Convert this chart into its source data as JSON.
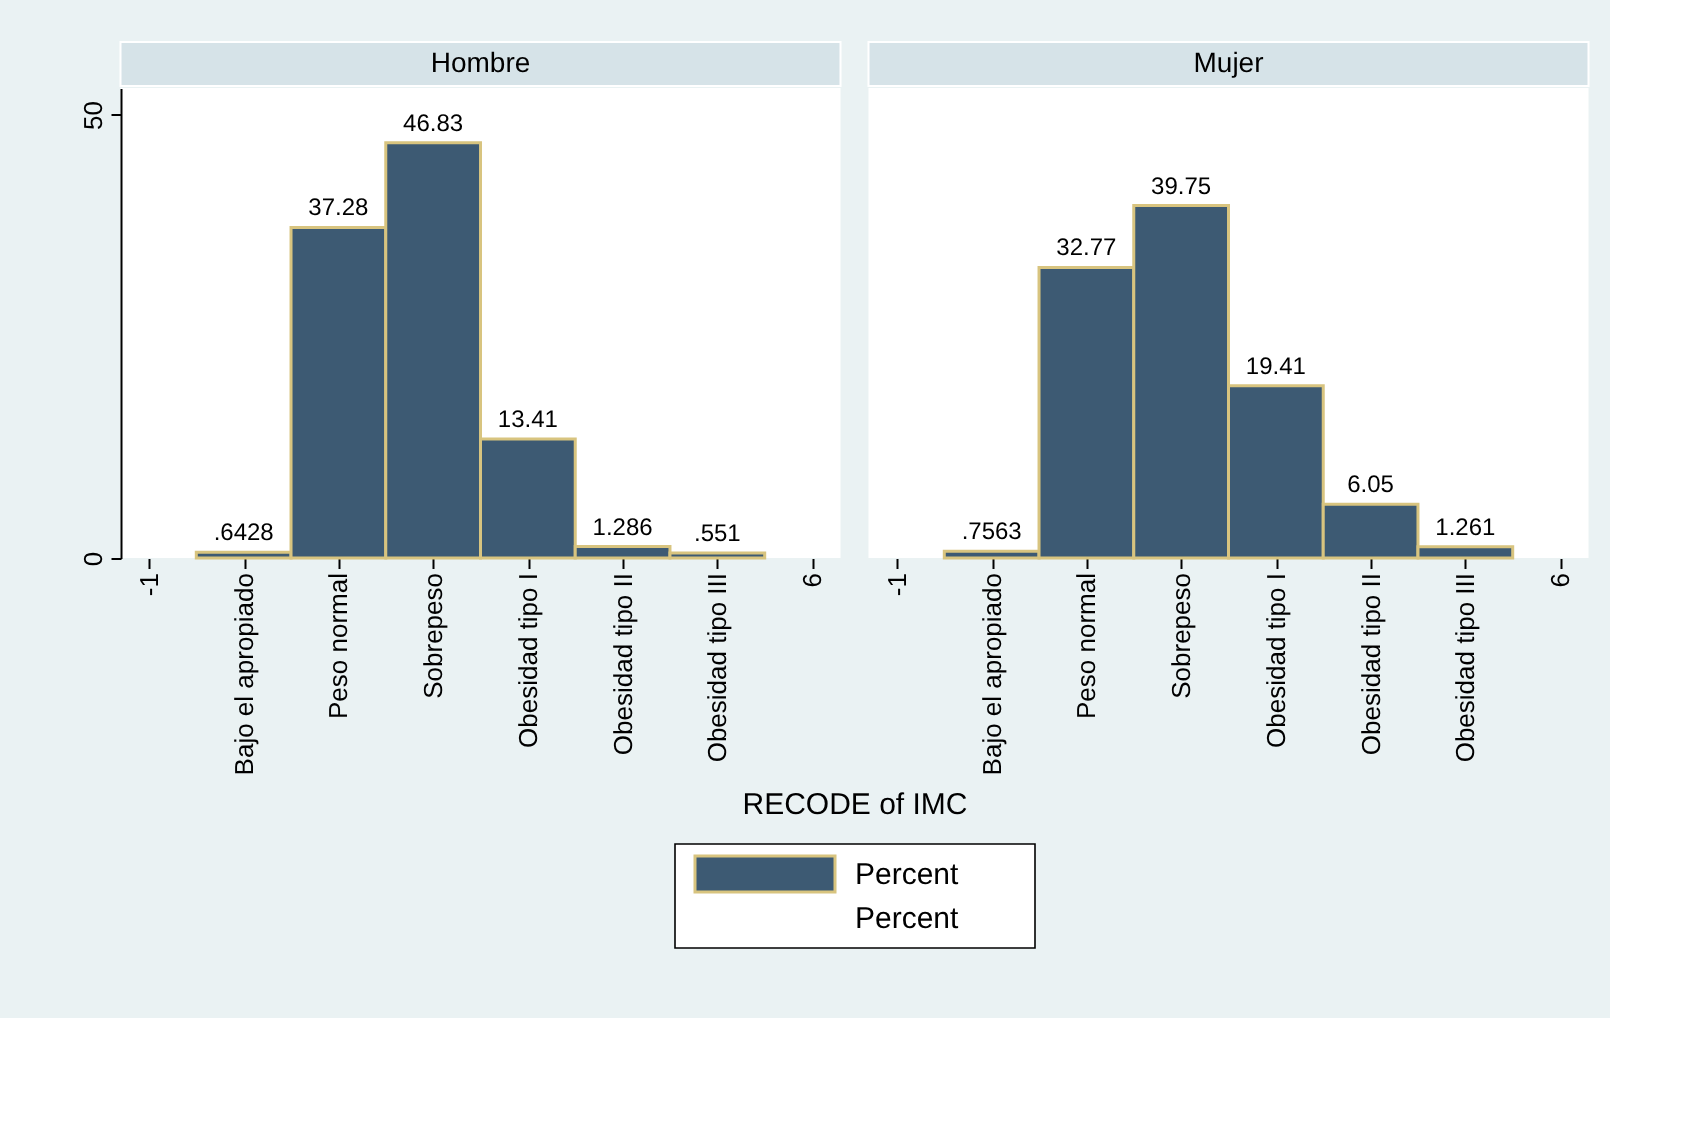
{
  "chart_data": [
    {
      "type": "histogram",
      "title": "Hombre",
      "xlabel": "RECODE of IMC",
      "legend": "bottom",
      "annotations": [
        "Percent"
      ],
      "bins": [
        -0.5,
        0.5,
        1.5,
        2.5,
        3.5,
        4.5,
        5.5
      ],
      "series": [
        {
          "name": "Percent",
          "color": "#3d5a73",
          "values": [
            0.6428,
            37.28,
            46.83,
            13.41,
            1.286,
            0.551
          ],
          "value_labels": [
            ".6428",
            "37.28",
            "46.83",
            "13.41",
            "1.286",
            ".551"
          ]
        }
      ],
      "xlim": [
        -1.3,
        6.3
      ],
      "xticks": [
        -1,
        {
          "value": 0,
          "label": "Bajo el apropiado"
        },
        {
          "value": 1,
          "label": "Peso normal"
        },
        {
          "value": 2,
          "label": "Sobrepeso"
        },
        {
          "value": 3,
          "label": "Obesidad tipo I"
        },
        {
          "value": 4,
          "label": "Obesidad tipo II"
        },
        {
          "value": 5,
          "label": "Obesidad tipo III"
        },
        6
      ],
      "ylim": [
        0,
        53
      ],
      "yticks": [
        0,
        50
      ]
    },
    {
      "type": "histogram",
      "title": "Mujer",
      "bins": [
        -0.5,
        0.5,
        1.5,
        2.5,
        3.5,
        4.5,
        5.5
      ],
      "series": [
        {
          "color": "#3d5a73",
          "values": [
            0.7563,
            32.77,
            39.75,
            19.41,
            6.05,
            1.261
          ],
          "value_labels": [
            ".7563",
            "32.77",
            "39.75",
            "19.41",
            "6.05",
            "1.261"
          ]
        }
      ],
      "xlim": [
        -1.3,
        6.3
      ],
      "xticks": [
        -1,
        {
          "value": 0,
          "label": "Bajo el apropiado"
        },
        {
          "value": 1,
          "label": "Peso normal"
        },
        {
          "value": 2,
          "label": "Sobrepeso"
        },
        {
          "value": 3,
          "label": "Obesidad tipo I"
        },
        {
          "value": 4,
          "label": "Obesidad tipo II"
        },
        {
          "value": 5,
          "label": "Obesidad tipo III"
        },
        6
      ],
      "ylim": [
        0,
        53
      ],
      "yticks": [
        0,
        50
      ],
      "tick_labels": "x"
    }
  ]
}
